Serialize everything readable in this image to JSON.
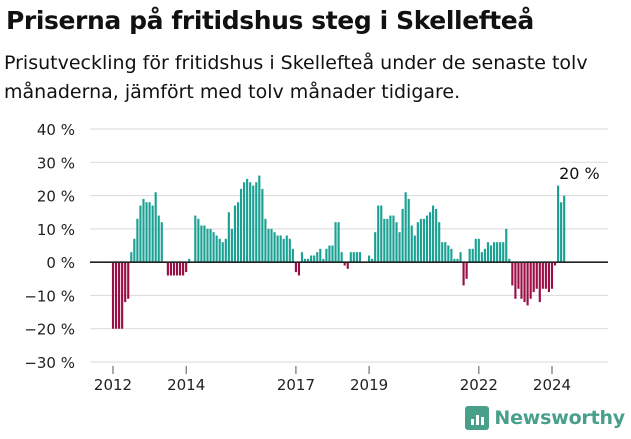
{
  "header": {
    "title": "Priserna på fritidshus steg i Skellefteå",
    "subtitle": "Prisutveckling för fritidshus i Skellefteå under de senaste tolv månaderna, jämfört med tolv månader tidigare."
  },
  "brand": {
    "name": "Newsworthy",
    "icon": "bar-chart-icon"
  },
  "colors": {
    "positive": "#1aa193",
    "negative": "#9a0d45",
    "grid": "#d9d9d9",
    "zero_line": "#222222"
  },
  "chart_data": {
    "type": "bar",
    "ylim": [
      -30,
      40
    ],
    "yticks": [
      -30,
      -20,
      -10,
      0,
      10,
      20,
      30,
      40
    ],
    "ytick_labels": [
      "−30 %",
      "−20 %",
      "−10 %",
      "0 %",
      "10 %",
      "20 %",
      "30 %",
      "40 %"
    ],
    "xticks": [
      {
        "label": "2012",
        "x": 2012
      },
      {
        "label": "2014",
        "x": 2014
      },
      {
        "label": "2017",
        "x": 2017
      },
      {
        "label": "2019",
        "x": 2019
      },
      {
        "label": "2022",
        "x": 2022
      },
      {
        "label": "2024",
        "x": 2024
      }
    ],
    "grid": true,
    "legend": "none",
    "annotation": {
      "text": "20 %",
      "x": 2024.75
    },
    "x_start": 2012,
    "x_step": 0.08333,
    "values": [
      -20,
      -20,
      -20,
      -20,
      -12,
      -11,
      3,
      7,
      13,
      17,
      19,
      18,
      18,
      17,
      21,
      14,
      12,
      0,
      -4,
      -4,
      -4,
      -4,
      -4,
      -4,
      -3,
      1,
      0,
      14,
      13,
      11,
      11,
      10,
      10,
      9,
      8,
      7,
      6,
      7,
      15,
      10,
      17,
      18,
      22,
      24,
      25,
      24,
      23,
      24,
      26,
      22,
      13,
      10,
      10,
      9,
      8,
      8,
      7,
      8,
      7,
      4,
      -3,
      -4,
      3,
      1,
      1,
      2,
      2,
      3,
      4,
      1,
      4,
      5,
      5,
      12,
      12,
      3,
      -1,
      -2,
      3,
      3,
      3,
      3,
      0,
      0,
      2,
      1,
      9,
      17,
      17,
      13,
      13,
      14,
      14,
      12,
      9,
      16,
      21,
      19,
      11,
      8,
      12,
      13,
      13,
      14,
      15,
      17,
      16,
      12,
      6,
      6,
      5,
      4,
      1,
      1,
      3,
      -7,
      -5,
      4,
      4,
      7,
      7,
      3,
      4,
      6,
      5,
      6,
      6,
      6,
      6,
      10,
      1,
      -7,
      -11,
      -8,
      -11,
      -12,
      -13,
      -11,
      -9,
      -8,
      -12,
      -8,
      -8,
      -9,
      -8,
      -1,
      23,
      18,
      20
    ]
  }
}
